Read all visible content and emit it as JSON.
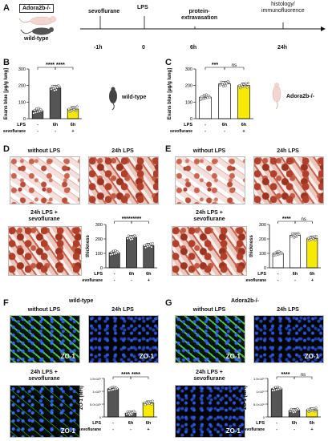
{
  "panels": {
    "A": "A",
    "B": "B",
    "C": "C",
    "D": "D",
    "E": "E",
    "F": "F",
    "G": "G"
  },
  "timeline": {
    "mouse_label": "Adora2b-/-",
    "wildtype_label": "wild-type",
    "steps": [
      {
        "label": "sevoflurane",
        "time": "-1h"
      },
      {
        "label": "LPS",
        "time": "0"
      },
      {
        "label": "protein-\nextravasation",
        "time": "6h"
      },
      {
        "label": "histology/\nimmunofluorence",
        "time": "24h"
      }
    ]
  },
  "common": {
    "lps": "LPS",
    "sevoflurane": "sevoflurane",
    "dash": "-",
    "h6": "6h",
    "plus": "+",
    "ns": "ns",
    "zo1": "ZO-1",
    "evans_ylabel": "Evans blue [µg/g lung]",
    "thickness_ylabel": "thickness",
    "zo_ylabel": "ZO-1 (MFI)"
  },
  "panel_B": {
    "mouse_label": "wild-type",
    "sig": "**** ****"
  },
  "panel_C": {
    "mouse_label": "Adora2b-/-",
    "sig": "***"
  },
  "panel_D": {
    "micro": [
      "without LPS",
      "24h LPS",
      "24h LPS +\nsevoflurane"
    ],
    "sig": "*********"
  },
  "panel_E": {
    "micro": [
      "without LPS",
      "24h LPS",
      "24h LPS +\nsevoflurane"
    ],
    "sig": "****"
  },
  "panel_F": {
    "genotype": "wild-type",
    "micro": [
      "without LPS",
      "24h LPS",
      "24h LPS +\nsevoflurane"
    ],
    "sig": "****   ****"
  },
  "panel_G": {
    "genotype": "Adora2b-/-",
    "micro": [
      "without LPS",
      "24h LPS",
      "24h LPS +\nsevoflurane"
    ],
    "sig": "****"
  },
  "chart_data": [
    {
      "id": "B",
      "type": "bar",
      "ylabel": "Evans blue [µg/g lung]",
      "ylim": [
        0,
        300
      ],
      "yticks": [
        0,
        100,
        200,
        300
      ],
      "categories": [
        "-",
        "6h",
        "6h"
      ],
      "sevoflurane": [
        "-",
        "-",
        "+"
      ],
      "values": [
        48,
        185,
        58
      ],
      "colors": [
        "#555555",
        "#555555",
        "#f5ea00"
      ]
    },
    {
      "id": "C",
      "type": "bar",
      "ylabel": "Evans blue [µg/g lung]",
      "ylim": [
        0,
        300
      ],
      "yticks": [
        0,
        100,
        200,
        300
      ],
      "categories": [
        "-",
        "6h",
        "6h"
      ],
      "sevoflurane": [
        "-",
        "-",
        "+"
      ],
      "values": [
        130,
        210,
        200
      ],
      "colors": [
        "#ffffff",
        "#ffffff",
        "#f5ea00"
      ]
    },
    {
      "id": "D",
      "type": "bar",
      "ylabel": "thickness",
      "ylim": [
        0,
        300
      ],
      "yticks": [
        0,
        100,
        200,
        300
      ],
      "categories": [
        "-",
        "6h",
        "6h"
      ],
      "sevoflurane": [
        "-",
        "-",
        "+"
      ],
      "values": [
        105,
        210,
        155
      ],
      "colors": [
        "#555555",
        "#555555",
        "#555555"
      ]
    },
    {
      "id": "E",
      "type": "bar",
      "ylabel": "thickness",
      "ylim": [
        0,
        300
      ],
      "yticks": [
        0,
        100,
        200,
        300
      ],
      "categories": [
        "-",
        "6h",
        "6h"
      ],
      "sevoflurane": [
        "-",
        "-",
        "+"
      ],
      "values": [
        100,
        225,
        205
      ],
      "colors": [
        "#ffffff",
        "#ffffff",
        "#f5ea00"
      ]
    },
    {
      "id": "F",
      "type": "bar",
      "ylabel": "ZO-1 (MFI)",
      "ylim": [
        0,
        1.5
      ],
      "ytick_labels": [
        "0",
        "5.0×10⁵",
        "1×10⁶",
        "1.5×10⁶"
      ],
      "yticks": [
        0,
        0.5,
        1.0,
        1.5
      ],
      "categories": [
        "-",
        "6h",
        "6h"
      ],
      "sevoflurane": [
        "-",
        "-",
        "+"
      ],
      "values": [
        1.1,
        0.15,
        0.55
      ],
      "colors": [
        "#555555",
        "#555555",
        "#f5ea00"
      ]
    },
    {
      "id": "G",
      "type": "bar",
      "ylabel": "ZO-1 (MFI)",
      "ylim": [
        0,
        1.5
      ],
      "ytick_labels": [
        "0",
        "5.0×10⁵",
        "1×10⁶",
        "1.5×10⁶"
      ],
      "yticks": [
        0,
        0.5,
        1.0,
        1.5
      ],
      "categories": [
        "-",
        "6h",
        "6h"
      ],
      "sevoflurane": [
        "-",
        "-",
        "+"
      ],
      "values": [
        1.1,
        0.25,
        0.28
      ],
      "colors": [
        "#555555",
        "#555555",
        "#f5ea00"
      ]
    }
  ]
}
